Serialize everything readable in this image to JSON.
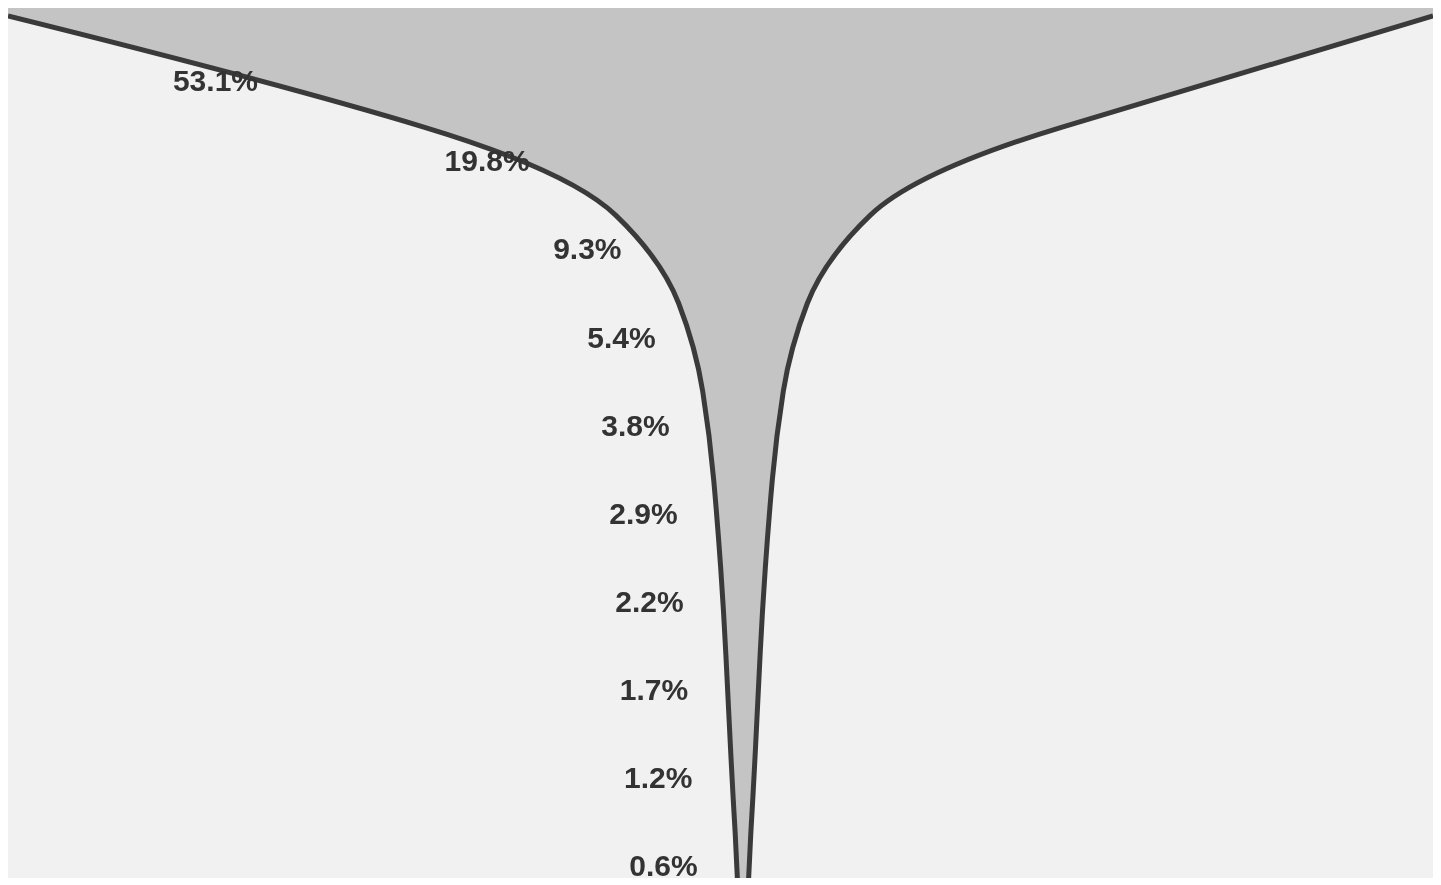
{
  "chart_data": {
    "type": "other",
    "categories": [
      null,
      null,
      null,
      null,
      null,
      null,
      null,
      null,
      null,
      null
    ],
    "values": [
      53.1,
      19.8,
      9.3,
      5.4,
      3.8,
      2.9,
      2.2,
      1.7,
      1.2,
      0.6
    ],
    "value_labels": [
      "53.1%",
      "19.8%",
      "9.3%",
      "5.4%",
      "3.8%",
      "2.9%",
      "2.2%",
      "1.7%",
      "1.2%",
      "0.6%"
    ],
    "color": "#c4c4c4"
  }
}
